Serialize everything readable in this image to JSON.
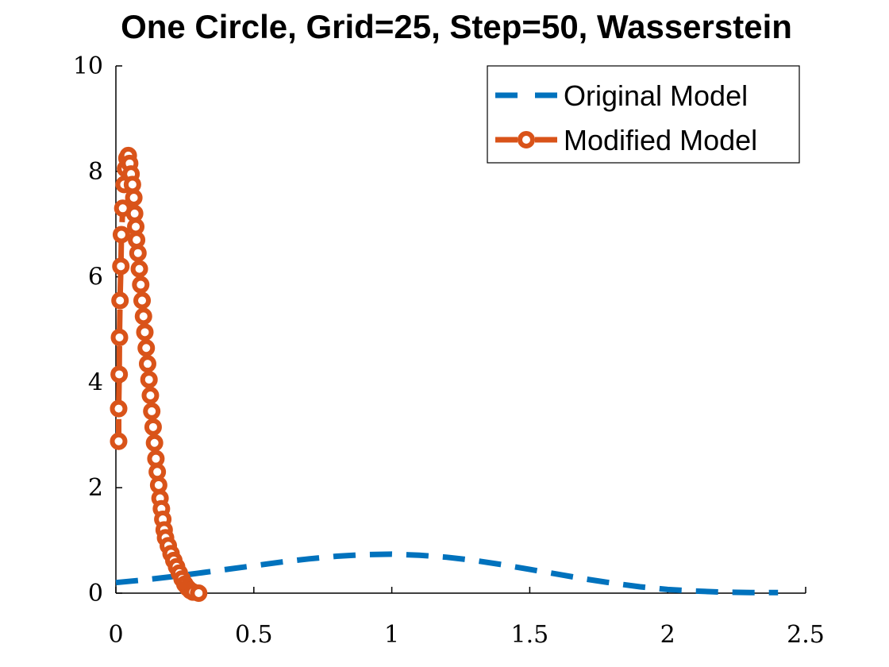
{
  "chart_data": {
    "type": "line",
    "title": "One Circle, Grid=25, Step=50, Wasserstein",
    "xlim": [
      0,
      2.5
    ],
    "xticks": [
      0,
      0.5,
      1,
      1.5,
      2,
      2.5
    ],
    "ylim": [
      0,
      10
    ],
    "yticks": [
      0,
      2,
      4,
      6,
      8,
      10
    ],
    "legend": "northeast",
    "series": [
      {
        "name": "Original Model",
        "color": "#0072bd",
        "style": "dashed",
        "marker": "none",
        "x": [
          0,
          0.1,
          0.2,
          0.3,
          0.4,
          0.5,
          0.6,
          0.7,
          0.8,
          0.9,
          1.0,
          1.1,
          1.2,
          1.3,
          1.4,
          1.5,
          1.6,
          1.7,
          1.8,
          1.9,
          2.0,
          2.1,
          2.2,
          2.3,
          2.4
        ],
        "values": [
          0.2,
          0.25,
          0.31,
          0.38,
          0.45,
          0.52,
          0.59,
          0.65,
          0.7,
          0.73,
          0.74,
          0.72,
          0.68,
          0.62,
          0.54,
          0.45,
          0.36,
          0.27,
          0.19,
          0.12,
          0.07,
          0.04,
          0.02,
          0.01,
          0.01
        ]
      },
      {
        "name": "Modified Model",
        "color": "#d95319",
        "style": "dashed",
        "marker": "circle",
        "x": [
          0.01,
          0.01,
          0.012,
          0.013,
          0.015,
          0.018,
          0.02,
          0.025,
          0.03,
          0.035,
          0.04,
          0.045,
          0.05,
          0.055,
          0.06,
          0.065,
          0.068,
          0.072,
          0.075,
          0.08,
          0.085,
          0.09,
          0.095,
          0.1,
          0.105,
          0.11,
          0.115,
          0.12,
          0.125,
          0.13,
          0.135,
          0.14,
          0.145,
          0.15,
          0.155,
          0.16,
          0.165,
          0.17,
          0.175,
          0.18,
          0.19,
          0.2,
          0.21,
          0.22,
          0.23,
          0.24,
          0.25,
          0.26,
          0.27,
          0.28,
          0.3
        ],
        "values": [
          2.88,
          3.5,
          4.15,
          4.85,
          5.55,
          6.2,
          6.8,
          7.3,
          7.75,
          8.05,
          8.25,
          8.3,
          8.15,
          7.95,
          7.75,
          7.5,
          7.2,
          6.95,
          6.7,
          6.45,
          6.15,
          5.85,
          5.55,
          5.25,
          4.95,
          4.65,
          4.35,
          4.05,
          3.75,
          3.45,
          3.15,
          2.85,
          2.55,
          2.3,
          2.05,
          1.8,
          1.6,
          1.4,
          1.2,
          1.05,
          0.9,
          0.75,
          0.62,
          0.5,
          0.38,
          0.27,
          0.17,
          0.1,
          0.05,
          0.02,
          0
        ]
      }
    ]
  }
}
